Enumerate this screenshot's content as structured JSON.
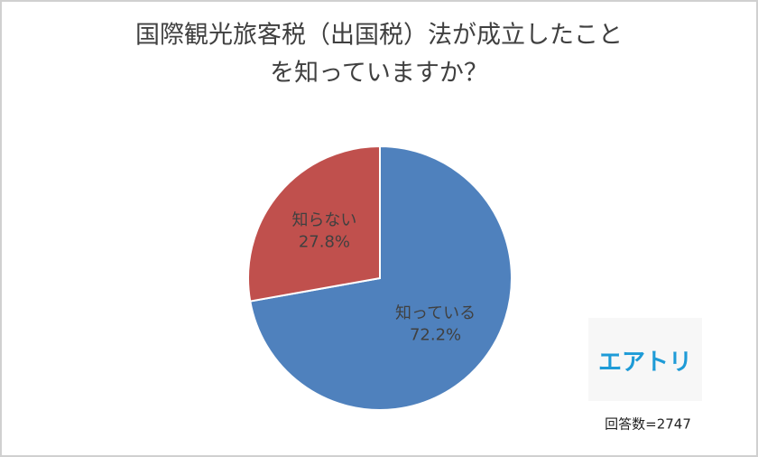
{
  "chart_data": {
    "type": "pie",
    "title": [
      "国際観光旅客税（出国税）法が成立したこと",
      "を知っていますか？"
    ],
    "categories": [
      "知っている",
      "知らない"
    ],
    "values": [
      72.2,
      27.8
    ],
    "value_labels": [
      "72.2%",
      "27.8%"
    ],
    "colors": [
      "#4f81bd",
      "#c0504d"
    ],
    "logo": "エアトリ",
    "note": "回答数=2747"
  }
}
